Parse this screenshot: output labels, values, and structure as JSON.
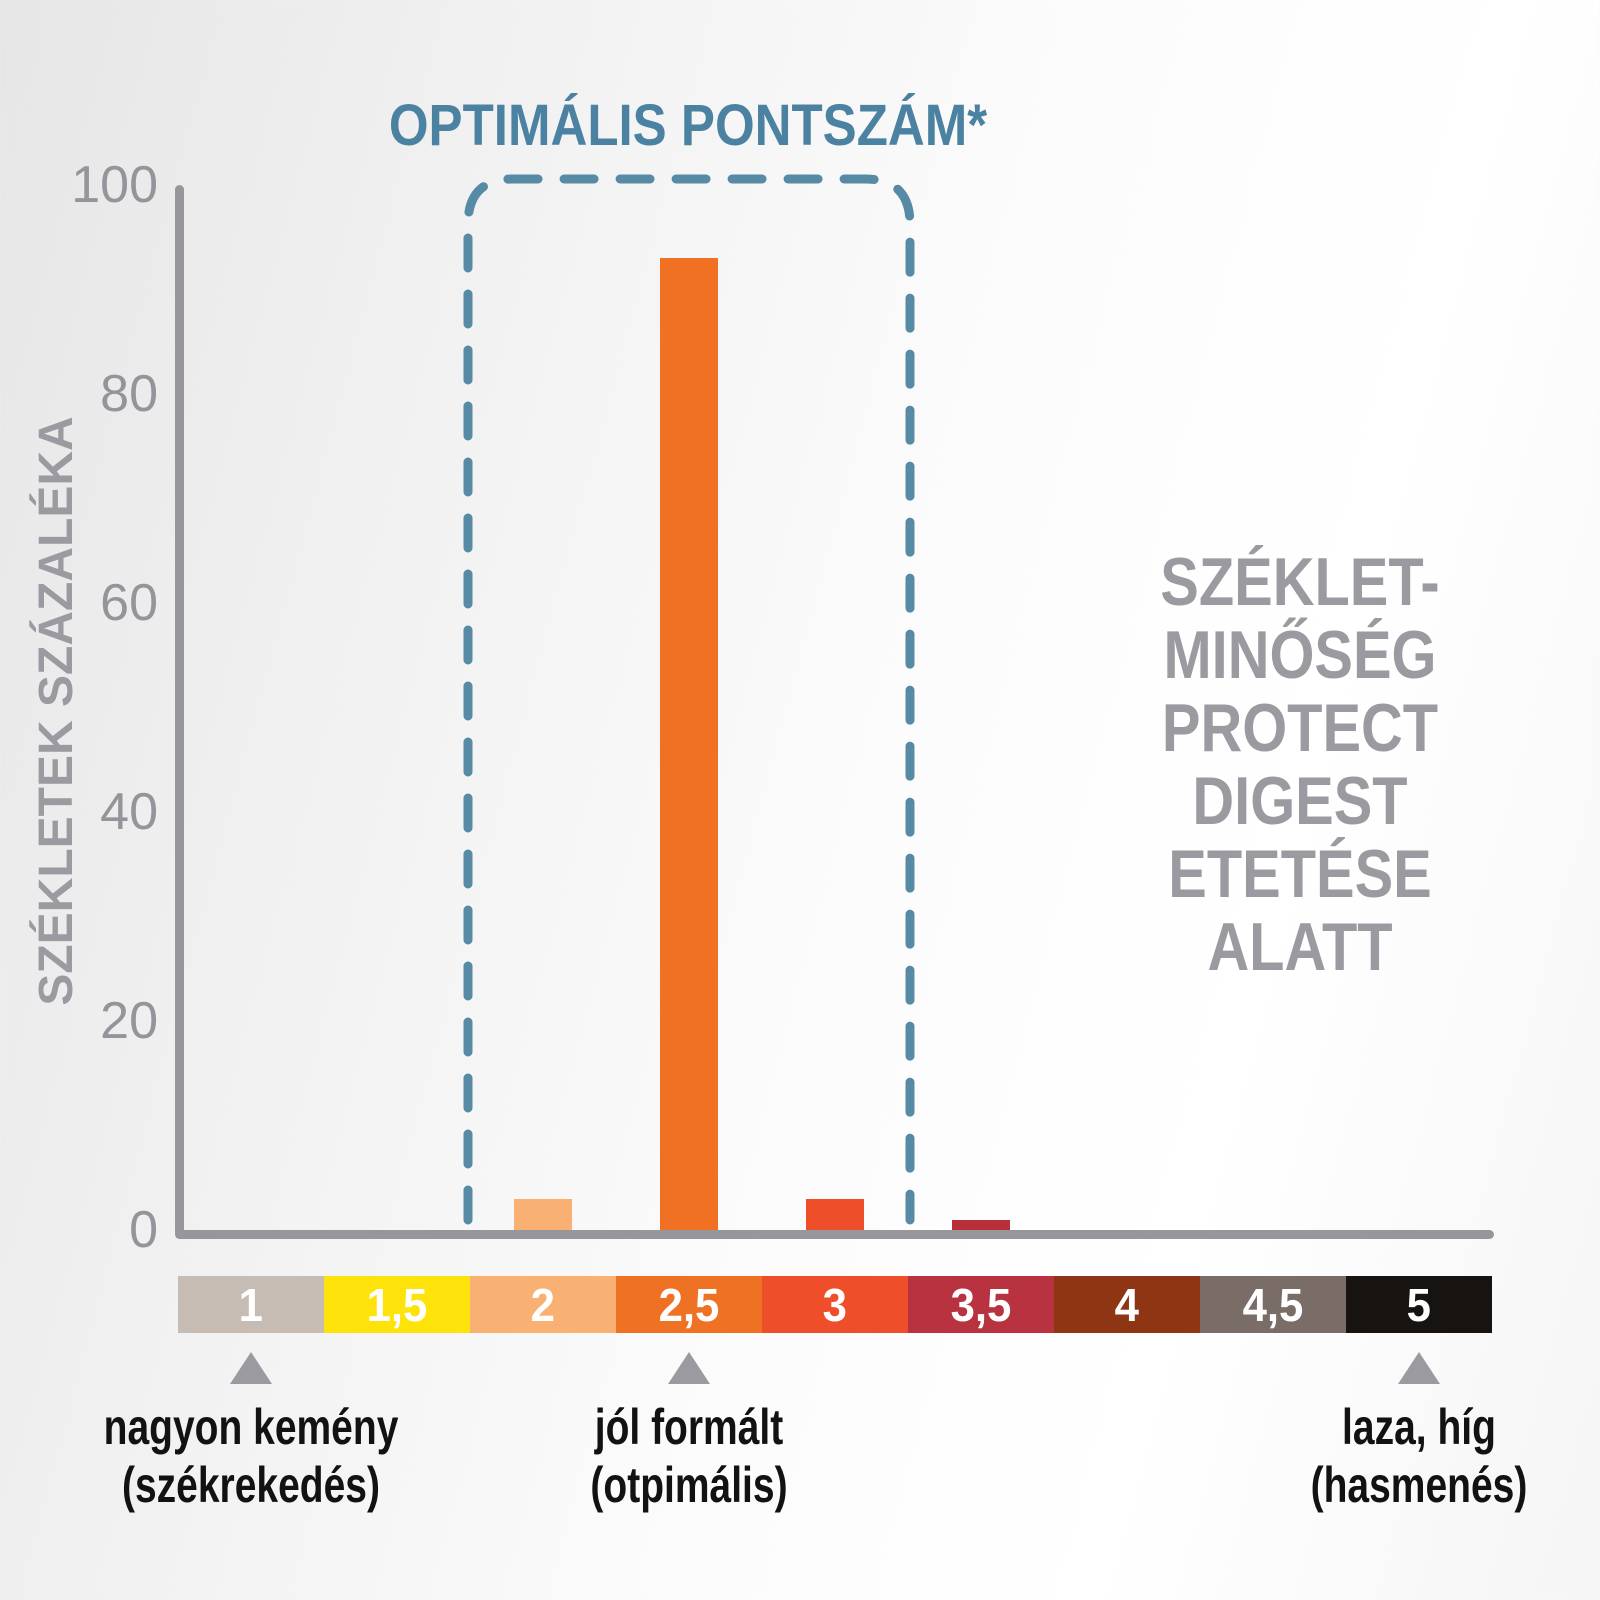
{
  "title": "OPTIMÁLIS PONTSZÁM*",
  "colors": {
    "title_blue": "#4b81a1",
    "dash_blue": "#578aa5",
    "axis_gray": "#97969b",
    "tick_gray": "#95949a",
    "label_gray": "#9b9aa0"
  },
  "right_note": {
    "lines": [
      "SZÉKLET-",
      "MINŐSÉG",
      "PROTECT",
      "DIGEST",
      "ETETÉSE",
      "ALATT"
    ]
  },
  "markers": [
    {
      "anchor_index": 0,
      "lines": [
        "nagyon kemény",
        "(székrekedés)"
      ]
    },
    {
      "anchor_index": 3,
      "lines": [
        "jól formált",
        "(otpimális)"
      ]
    },
    {
      "anchor_index": 8,
      "lines": [
        "laza, híg",
        "(hasmenés)"
      ]
    }
  ],
  "chart_data": {
    "type": "bar",
    "title": "OPTIMÁLIS PONTSZÁM*",
    "ylabel": "SZÉKLETEK SZÁZALÉKA",
    "ylim": [
      0,
      100
    ],
    "yticks": [
      0,
      20,
      40,
      60,
      80,
      100
    ],
    "categories": [
      "1",
      "1,5",
      "2",
      "2,5",
      "3",
      "3,5",
      "4",
      "4,5",
      "5"
    ],
    "values": [
      0,
      0,
      3,
      93,
      3,
      1,
      0,
      0,
      0
    ],
    "bar_colors": [
      null,
      null,
      "#f9b173",
      "#f07123",
      "#ee4e29",
      "#b73039",
      null,
      null,
      null
    ],
    "scale_colors": [
      "#c6bcb4",
      "#fee30b",
      "#f9b173",
      "#ef7123",
      "#ee4e29",
      "#b8333f",
      "#8e3514",
      "#7a6d68",
      "#161310"
    ],
    "optimal_zone": {
      "label": "OPTIMÁLIS PONTSZÁM*",
      "from_category": "2",
      "to_category": "3"
    },
    "annotations": [
      {
        "at_category": "1",
        "text": "nagyon kemény (székrekedés)"
      },
      {
        "at_category": "2,5",
        "text": "jól formált (otpimális)"
      },
      {
        "at_category": "5",
        "text": "laza, híg (hasmenés)"
      }
    ],
    "legend": "none",
    "grid": false
  }
}
